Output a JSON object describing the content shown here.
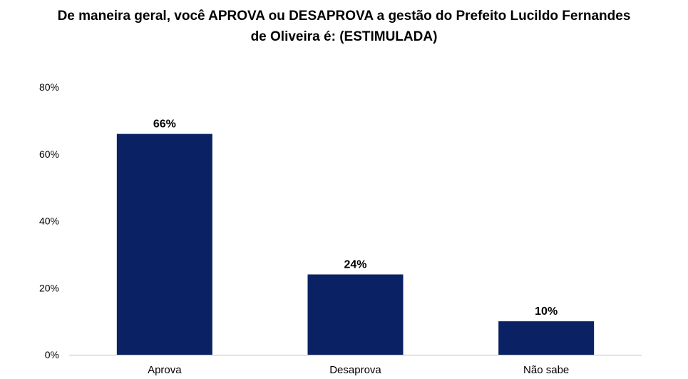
{
  "chart_data": {
    "type": "bar",
    "title_lines": [
      "De maneira geral, você APROVA ou DESAPROVA a gestão do Prefeito Lucildo Fernandes",
      "de Oliveira é: (ESTIMULADA)"
    ],
    "categories": [
      "Aprova",
      "Desaprova",
      "Não sabe"
    ],
    "values": [
      66,
      24,
      10
    ],
    "data_labels": [
      "66%",
      "24%",
      "10%"
    ],
    "ylim": [
      0,
      80
    ],
    "yticks": [
      0,
      20,
      40,
      60,
      80
    ],
    "ytick_labels": [
      "0%",
      "20%",
      "40%",
      "60%",
      "80%"
    ],
    "xlabel": "",
    "ylabel": "",
    "grid": false,
    "bar_color": "#0a2263",
    "axis_color": "#bfbfbf"
  }
}
